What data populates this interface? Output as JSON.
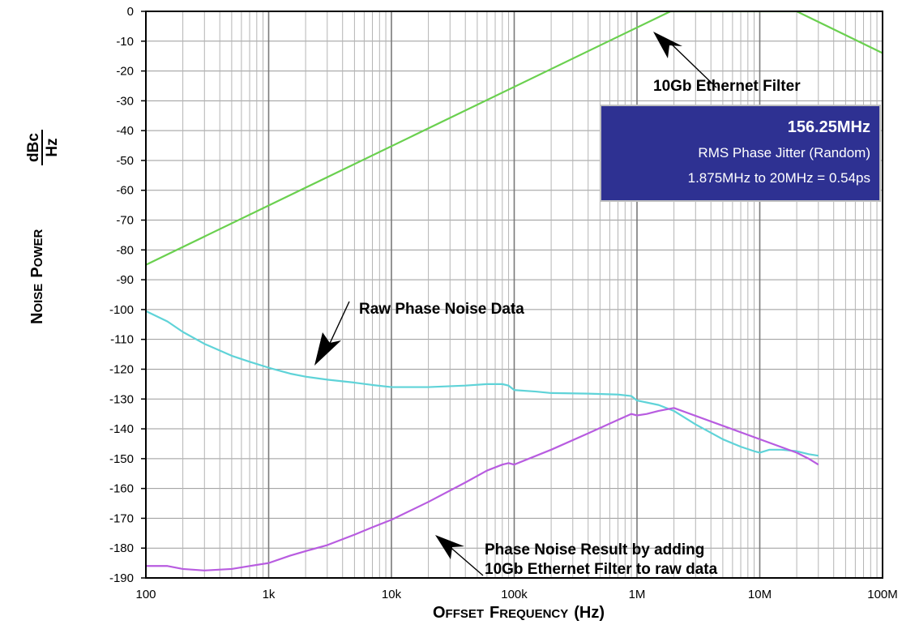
{
  "chart_data": {
    "type": "line",
    "x_scale": "log",
    "xlim": [
      100,
      100000000
    ],
    "ylim": [
      -190,
      0
    ],
    "grid": true,
    "xlabel_first_letters": [
      "O",
      "F"
    ],
    "xlabel_rest": [
      "FFSET",
      "REQUENCY"
    ],
    "xlabel_unit": "(Hz)",
    "ylabel_first_letters": [
      "N",
      "P"
    ],
    "ylabel_rest": [
      "OISE",
      "OWER"
    ],
    "ylabel_unit_num": "dBc",
    "ylabel_unit_den": "Hz",
    "x_ticks": [
      {
        "value": 100,
        "label": "100"
      },
      {
        "value": 1000,
        "label": "1k"
      },
      {
        "value": 10000,
        "label": "10k"
      },
      {
        "value": 100000,
        "label": "100k"
      },
      {
        "value": 1000000,
        "label": "1M"
      },
      {
        "value": 10000000,
        "label": "10M"
      },
      {
        "value": 100000000,
        "label": "100M"
      }
    ],
    "y_ticks": [
      {
        "value": 0,
        "label": "0"
      },
      {
        "value": -10,
        "label": "-10"
      },
      {
        "value": -20,
        "label": "-20"
      },
      {
        "value": -30,
        "label": "-30"
      },
      {
        "value": -40,
        "label": "-40"
      },
      {
        "value": -50,
        "label": "-50"
      },
      {
        "value": -60,
        "label": "-60"
      },
      {
        "value": -70,
        "label": "-70"
      },
      {
        "value": -80,
        "label": "-80"
      },
      {
        "value": -90,
        "label": "-90"
      },
      {
        "value": -100,
        "label": "-100"
      },
      {
        "value": -110,
        "label": "-110"
      },
      {
        "value": -120,
        "label": "-120"
      },
      {
        "value": -130,
        "label": "-130"
      },
      {
        "value": -140,
        "label": "-140"
      },
      {
        "value": -150,
        "label": "-150"
      },
      {
        "value": -160,
        "label": "-160"
      },
      {
        "value": -170,
        "label": "-170"
      },
      {
        "value": -180,
        "label": "-180"
      },
      {
        "value": -190,
        "label": "-190"
      }
    ],
    "series": [
      {
        "key": "filter",
        "color": "#6ad04f",
        "points": [
          [
            100,
            -85
          ],
          [
            1875000,
            0
          ],
          [
            20000000,
            0
          ],
          [
            100000000,
            -14
          ]
        ]
      },
      {
        "key": "raw",
        "color": "#5fd3d8",
        "points": [
          [
            100,
            -100.5
          ],
          [
            150,
            -104
          ],
          [
            200,
            -107.5
          ],
          [
            300,
            -111.5
          ],
          [
            500,
            -115.5
          ],
          [
            700,
            -117.5
          ],
          [
            1000,
            -119.5
          ],
          [
            1500,
            -121.5
          ],
          [
            2000,
            -122.5
          ],
          [
            3000,
            -123.5
          ],
          [
            5000,
            -124.5
          ],
          [
            7000,
            -125.3
          ],
          [
            10000,
            -126
          ],
          [
            20000,
            -126
          ],
          [
            40000,
            -125.5
          ],
          [
            60000,
            -125
          ],
          [
            80000,
            -125
          ],
          [
            90000,
            -125.5
          ],
          [
            100000,
            -127
          ],
          [
            150000,
            -127.5
          ],
          [
            200000,
            -128
          ],
          [
            400000,
            -128.2
          ],
          [
            700000,
            -128.5
          ],
          [
            900000,
            -129
          ],
          [
            1000000,
            -130.5
          ],
          [
            1500000,
            -132
          ],
          [
            2000000,
            -134
          ],
          [
            3000000,
            -138.5
          ],
          [
            5000000,
            -143.5
          ],
          [
            7000000,
            -146
          ],
          [
            9000000,
            -147.5
          ],
          [
            10000000,
            -148
          ],
          [
            12000000,
            -147
          ],
          [
            15000000,
            -147
          ],
          [
            20000000,
            -147.5
          ],
          [
            25000000,
            -148.5
          ],
          [
            30000000,
            -149
          ]
        ]
      },
      {
        "key": "result",
        "color": "#b85ce0",
        "points": [
          [
            100,
            -186
          ],
          [
            150,
            -186
          ],
          [
            200,
            -187
          ],
          [
            300,
            -187.5
          ],
          [
            500,
            -187
          ],
          [
            700,
            -186
          ],
          [
            1000,
            -185
          ],
          [
            1500,
            -182.5
          ],
          [
            2000,
            -181
          ],
          [
            3000,
            -179
          ],
          [
            5000,
            -175.5
          ],
          [
            7000,
            -173
          ],
          [
            10000,
            -170.5
          ],
          [
            20000,
            -164.5
          ],
          [
            40000,
            -158
          ],
          [
            60000,
            -154
          ],
          [
            80000,
            -152
          ],
          [
            90000,
            -151.5
          ],
          [
            100000,
            -152
          ],
          [
            200000,
            -147
          ],
          [
            400000,
            -141.5
          ],
          [
            700000,
            -137
          ],
          [
            900000,
            -135
          ],
          [
            1000000,
            -135.5
          ],
          [
            1200000,
            -135
          ],
          [
            1500000,
            -134
          ],
          [
            2000000,
            -133
          ],
          [
            20000000,
            -148
          ],
          [
            25000000,
            -150
          ],
          [
            30000000,
            -152
          ]
        ]
      }
    ],
    "annotations": [
      {
        "key": "filter",
        "text": "10Gb Ethernet Filter"
      },
      {
        "key": "raw",
        "text": "Raw Phase Noise Data"
      },
      {
        "key": "result1",
        "text": "Phase Noise Result by adding"
      },
      {
        "key": "result2",
        "text": "10Gb Ethernet Filter to raw data"
      }
    ],
    "info_box": {
      "title": "156.25MHz",
      "line1": "RMS Phase Jitter (Random)",
      "line2": "1.875MHz to 20MHz = 0.54ps",
      "background": "#2e3192"
    }
  }
}
